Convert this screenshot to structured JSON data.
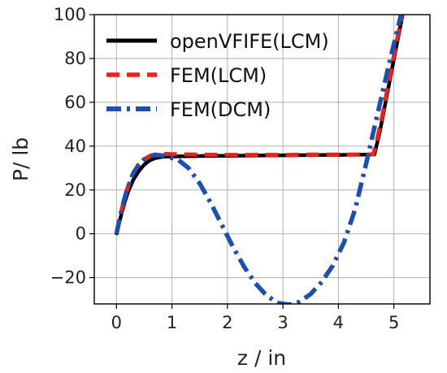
{
  "chart_data": {
    "type": "line",
    "title": "",
    "xlabel": "z / in",
    "ylabel": "P/ lb",
    "xlim": [
      -0.4,
      5.65
    ],
    "ylim": [
      -32,
      100
    ],
    "xticks": [
      0,
      1,
      2,
      3,
      4,
      5
    ],
    "yticks": [
      -20,
      0,
      20,
      40,
      60,
      80,
      100
    ],
    "ytick_labels": [
      "−20",
      "0",
      "20",
      "40",
      "60",
      "80",
      "100"
    ],
    "grid": true,
    "legend_position": "top-left",
    "series": [
      {
        "name": "openVFIFE(LCM)",
        "color": "#000000",
        "style": "solid",
        "x": [
          0.0,
          0.05,
          0.1,
          0.15,
          0.2,
          0.3,
          0.4,
          0.5,
          0.6,
          0.7,
          0.8,
          0.9,
          1.0,
          1.5,
          2.0,
          2.5,
          3.0,
          3.5,
          4.0,
          4.5,
          4.65,
          4.75,
          4.85,
          4.95,
          5.05,
          5.15,
          5.22
        ],
        "y": [
          -0.5,
          5.0,
          10.0,
          14.5,
          18.5,
          24.5,
          28.5,
          31.5,
          33.5,
          34.5,
          35.0,
          35.2,
          35.3,
          35.5,
          35.6,
          35.7,
          35.8,
          35.9,
          36.0,
          36.1,
          36.2,
          47.0,
          60.0,
          73.0,
          86.0,
          99.0,
          108.0
        ]
      },
      {
        "name": "FEM(LCM)",
        "color": "#e8231e",
        "style": "dashed",
        "x": [
          0.0,
          0.05,
          0.1,
          0.15,
          0.2,
          0.3,
          0.4,
          0.5,
          0.6,
          0.7,
          0.8,
          0.9,
          1.0,
          1.5,
          2.0,
          2.5,
          3.0,
          3.5,
          4.0,
          4.5,
          4.63,
          4.7,
          4.8,
          4.9,
          5.0,
          5.1,
          5.2
        ],
        "y": [
          0.0,
          6.0,
          11.5,
          16.5,
          21.0,
          27.5,
          31.5,
          34.0,
          35.5,
          36.2,
          36.4,
          36.4,
          36.3,
          36.1,
          36.0,
          36.0,
          36.0,
          36.1,
          36.1,
          36.2,
          36.3,
          43.0,
          55.0,
          68.0,
          81.0,
          94.0,
          107.0
        ]
      },
      {
        "name": "FEM(DCM)",
        "color": "#1f4fad",
        "style": "dashdot",
        "x": [
          0.0,
          0.05,
          0.1,
          0.15,
          0.2,
          0.3,
          0.4,
          0.5,
          0.6,
          0.7,
          0.8,
          0.9,
          1.0,
          1.1,
          1.3,
          1.5,
          1.7,
          1.9,
          2.1,
          2.3,
          2.5,
          2.7,
          2.9,
          3.1,
          3.2,
          3.3,
          3.5,
          3.7,
          3.9,
          4.1,
          4.3,
          4.5,
          4.7,
          4.9,
          5.1,
          5.2
        ],
        "y": [
          0.0,
          6.0,
          11.5,
          16.5,
          21.0,
          27.5,
          31.5,
          34.0,
          35.5,
          36.0,
          35.8,
          35.2,
          34.6,
          34.0,
          30.0,
          23.0,
          14.0,
          4.0,
          -6.0,
          -15.0,
          -22.5,
          -28.0,
          -31.5,
          -32.3,
          -32.0,
          -31.0,
          -27.5,
          -22.0,
          -14.5,
          -4.0,
          11.0,
          32.0,
          54.0,
          76.0,
          97.0,
          108.0
        ]
      }
    ]
  }
}
